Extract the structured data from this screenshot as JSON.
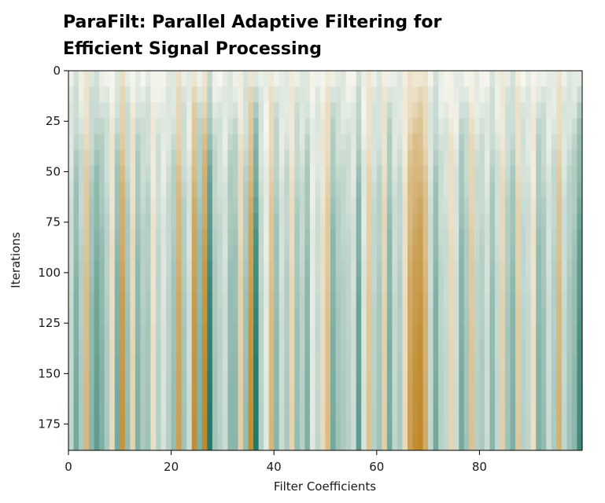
{
  "title": {
    "line1": "ParaFilt: Parallel Adaptive Filtering for",
    "line2": "Efficient Signal Processing"
  },
  "chart_data": {
    "type": "heatmap",
    "title": "ParaFilt: Parallel Adaptive Filtering for Efficient Signal Processing",
    "xlabel": "Filter Coefficients",
    "ylabel": "Iterations",
    "xlim": [
      0,
      100
    ],
    "ylim": [
      188,
      0
    ],
    "x_ticks": [
      0,
      20,
      40,
      60,
      80
    ],
    "y_ticks": [
      0,
      25,
      50,
      75,
      100,
      125,
      150,
      175
    ],
    "n_columns": 100,
    "n_rows": 188,
    "grid": false,
    "legend": "none",
    "colormap": {
      "low": "#b87a10",
      "mid": "#f6f6ee",
      "high": "#0f6b5c"
    },
    "value_range": [
      -1,
      1
    ],
    "column_final_values": [
      0.25,
      0.6,
      0.35,
      -0.55,
      0.5,
      0.7,
      0.55,
      0.35,
      -0.25,
      0.6,
      -0.85,
      0.45,
      -0.3,
      0.55,
      0.35,
      0.4,
      -0.2,
      0.3,
      0.15,
      0.3,
      0.45,
      -0.75,
      0.4,
      0.2,
      -0.9,
      0.55,
      -0.95,
      0.98,
      0.4,
      0.3,
      0.2,
      0.5,
      0.5,
      -0.35,
      0.45,
      -0.9,
      0.98,
      0.3,
      0.1,
      -0.55,
      0.5,
      0.2,
      0.35,
      -0.3,
      0.45,
      0.3,
      0.55,
      0.1,
      0.25,
      -0.25,
      -0.5,
      0.6,
      0.4,
      0.35,
      0.3,
      0.2,
      0.7,
      0.15,
      -0.45,
      0.3,
      0.4,
      -0.35,
      0.6,
      0.25,
      0.35,
      -0.25,
      -0.75,
      -0.9,
      -0.95,
      -0.65,
      0.25,
      0.6,
      0.3,
      0.25,
      -0.3,
      0.2,
      0.6,
      0.4,
      -0.45,
      0.3,
      0.35,
      0.2,
      0.5,
      0.25,
      -0.35,
      0.4,
      0.55,
      -0.4,
      0.3,
      0.25,
      -0.2,
      0.55,
      0.45,
      0.2,
      0.35,
      -0.6,
      0.25,
      0.4,
      0.5,
      0.85
    ]
  }
}
